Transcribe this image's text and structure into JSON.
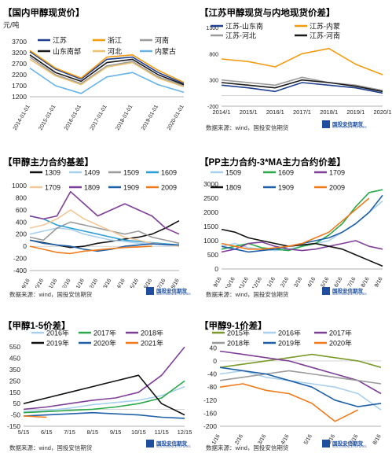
{
  "chart_data": [
    {
      "type": "line",
      "title": "【国内甲醇现货价】",
      "ylabel": "元/吨",
      "ylim": [
        1200,
        4200
      ],
      "yticks": [
        1200,
        1700,
        2200,
        2700,
        3200,
        3700
      ],
      "x": [
        "2014-01-01",
        "2015-01-01",
        "2016-01-01",
        "2017-01-01",
        "2018-01-01",
        "2019-01-01",
        "2020-01-01"
      ],
      "series": [
        {
          "name": "江苏",
          "color": "#1f3f8f",
          "values": [
            3250,
            2450,
            2000,
            2900,
            3000,
            2300,
            1800
          ]
        },
        {
          "name": "浙江",
          "color": "#f39c12",
          "values": [
            3300,
            2500,
            2050,
            3000,
            3100,
            2400,
            1850
          ]
        },
        {
          "name": "河南",
          "color": "#9a9a9a",
          "values": [
            3000,
            2200,
            1800,
            2600,
            2800,
            2100,
            1700
          ]
        },
        {
          "name": "山东南部",
          "color": "#1a1a1a",
          "values": [
            3100,
            2300,
            1900,
            2750,
            2900,
            2200,
            1750
          ]
        },
        {
          "name": "河北",
          "color": "#e8c070",
          "values": [
            2900,
            2150,
            1750,
            2550,
            2750,
            2050,
            1650
          ]
        },
        {
          "name": "内蒙古",
          "color": "#66b3e8",
          "values": [
            2500,
            1700,
            1350,
            2100,
            2300,
            1750,
            1400
          ]
        }
      ],
      "source": "数据来源：wind，国投安信期货"
    },
    {
      "type": "line",
      "title": "【江苏甲醇现货与内地现货价差】",
      "ylim": [
        -200,
        1300
      ],
      "yticks": [
        -200,
        300,
        800,
        1300
      ],
      "x": [
        "2014/1",
        "2015/1",
        "2016/1",
        "2017/1",
        "2018/1",
        "2019/1",
        "2020/1"
      ],
      "series": [
        {
          "name": "江苏-山东南",
          "color": "#1f3f8f",
          "values": [
            200,
            150,
            80,
            250,
            200,
            150,
            50
          ]
        },
        {
          "name": "江苏-内蒙",
          "color": "#f39c12",
          "values": [
            700,
            650,
            550,
            800,
            900,
            600,
            400
          ]
        },
        {
          "name": "江苏-河北",
          "color": "#9a9a9a",
          "values": [
            300,
            250,
            200,
            350,
            250,
            200,
            100
          ]
        },
        {
          "name": "江苏-河南",
          "color": "#1a1a1a",
          "values": [
            250,
            200,
            150,
            300,
            250,
            180,
            80
          ]
        }
      ],
      "source": "数据来源：wind，国投安信期货"
    },
    {
      "type": "line",
      "title": "【甲醇主力合约基差】",
      "ylim": [
        -400,
        1000
      ],
      "yticks": [
        -400,
        -200,
        0,
        200,
        400,
        600,
        800,
        1000
      ],
      "x": [
        "9/16",
        "10/16",
        "11/16",
        "12/16",
        "1/16",
        "2/16",
        "3/16",
        "4/16",
        "5/16",
        "6/16",
        "7/16",
        "8/16"
      ],
      "series": [
        {
          "name": "1309",
          "color": "#111111",
          "values": [
            100,
            60,
            20,
            -20,
            0,
            50,
            80,
            120,
            150,
            200,
            300,
            420
          ]
        },
        {
          "name": "1409",
          "color": "#a8d0ee",
          "values": [
            200,
            250,
            300,
            280,
            200,
            150,
            100,
            80,
            50,
            40,
            20,
            0
          ]
        },
        {
          "name": "1509",
          "color": "#9a9a9a",
          "values": [
            150,
            100,
            300,
            400,
            350,
            300,
            250,
            200,
            250,
            150,
            100,
            50
          ]
        },
        {
          "name": "1609",
          "color": "#2a9fd6",
          "values": [
            500,
            450,
            350,
            300,
            250,
            200,
            150,
            100,
            80,
            60,
            40,
            20
          ]
        },
        {
          "name": "1709",
          "color": "#f0c89a",
          "values": [
            300,
            350,
            450,
            600,
            450,
            350,
            250,
            150,
            100,
            50,
            30,
            0
          ]
        },
        {
          "name": "1809",
          "color": "#7f3f98",
          "values": [
            500,
            450,
            500,
            900,
            700,
            500,
            600,
            700,
            600,
            500,
            300,
            200
          ]
        },
        {
          "name": "1909",
          "color": "#1f5fa8",
          "values": [
            100,
            50,
            20,
            0,
            -50,
            -80,
            -50,
            0,
            20,
            40,
            30,
            20
          ]
        },
        {
          "name": "2009",
          "color": "#f07a1a",
          "values": [
            0,
            -50,
            -100,
            -120,
            -80,
            -60,
            -40,
            -20,
            -10,
            0,
            null,
            null
          ]
        }
      ],
      "source": "数据来源：wind，国投安信期货"
    },
    {
      "type": "line",
      "title": "【PP主力合约-3*MA主力合约价差】",
      "ylim": [
        0,
        3000
      ],
      "yticks": [
        0,
        500,
        1000,
        1500,
        2000,
        2500,
        3000
      ],
      "x": [
        "9/16",
        "10/16",
        "11/16",
        "12/16",
        "1/16",
        "2/16",
        "3/16",
        "4/16",
        "5/16",
        "6/16",
        "7/16",
        "8/16",
        "9/16"
      ],
      "series": [
        {
          "name": "1509",
          "color": "#a8d0ee",
          "values": [
            800,
            900,
            750,
            700,
            650,
            700,
            800,
            900,
            1000,
            1300,
            1600,
            2000,
            2400
          ]
        },
        {
          "name": "1609",
          "color": "#2aa84a",
          "values": [
            700,
            800,
            900,
            750,
            700,
            650,
            800,
            900,
            1200,
            1600,
            2200,
            2700,
            2800
          ]
        },
        {
          "name": "1709",
          "color": "#7f3f98",
          "values": [
            600,
            700,
            900,
            950,
            800,
            700,
            650,
            700,
            800,
            900,
            1000,
            800,
            700
          ]
        },
        {
          "name": "1809",
          "color": "#111111",
          "values": [
            1400,
            1300,
            1100,
            1000,
            900,
            800,
            850,
            900,
            800,
            700,
            500,
            300,
            100
          ]
        },
        {
          "name": "1909",
          "color": "#1f5fa8",
          "values": [
            800,
            700,
            600,
            650,
            700,
            800,
            900,
            1000,
            1100,
            1300,
            1600,
            2000,
            2600
          ]
        },
        {
          "name": "2009",
          "color": "#f07a1a",
          "values": [
            900,
            800,
            700,
            700,
            750,
            800,
            900,
            1100,
            1300,
            1700,
            2100,
            2500,
            null
          ]
        }
      ],
      "source": "数据来源：wind，国投安信期货"
    },
    {
      "type": "line",
      "title": "【甲醇1-5价差】",
      "ylim": [
        -150,
        600
      ],
      "yticks": [
        -150,
        -100,
        -50,
        0,
        50,
        100,
        150,
        200,
        250,
        300,
        350,
        400,
        450,
        500,
        550,
        600
      ],
      "x": [
        "5/15",
        "6/15",
        "7/15",
        "8/15",
        "9/15",
        "10/15",
        "11/15",
        "12/15"
      ],
      "series": [
        {
          "name": "2016年",
          "color": "#a8d0ee",
          "values": [
            -20,
            -10,
            10,
            40,
            60,
            80,
            120,
            200
          ]
        },
        {
          "name": "2017年",
          "color": "#2aa84a",
          "values": [
            -30,
            -20,
            -10,
            0,
            20,
            50,
            100,
            250
          ]
        },
        {
          "name": "2018年",
          "color": "#7f3f98",
          "values": [
            0,
            20,
            50,
            80,
            100,
            150,
            300,
            550
          ]
        },
        {
          "name": "2019年",
          "color": "#111111",
          "values": [
            50,
            100,
            150,
            200,
            250,
            300,
            50,
            -50
          ]
        },
        {
          "name": "2020年",
          "color": "#1f5fa8",
          "values": [
            -60,
            -50,
            -40,
            -30,
            -40,
            -50,
            -70,
            -80
          ]
        },
        {
          "name": "2021年",
          "color": "#f07a1a",
          "values": [
            -60,
            -70,
            null,
            null,
            null,
            null,
            null,
            null
          ]
        }
      ],
      "source": "数据来源：wind，国投安信期货"
    },
    {
      "type": "line",
      "title": "【甲醇9-1价差】",
      "ylim": [
        -200,
        60
      ],
      "yticks": [
        -200,
        -180,
        -160,
        -140,
        -120,
        -100,
        -80,
        -60,
        -40,
        -20,
        0,
        20,
        40,
        60
      ],
      "x": [
        "1/16",
        "2/16",
        "3/16",
        "4/16",
        "5/16",
        "6/16",
        "7/16",
        "8/16"
      ],
      "series": [
        {
          "name": "2015年",
          "color": "#7a9a2a",
          "values": [
            -20,
            -10,
            0,
            10,
            20,
            10,
            0,
            -20
          ]
        },
        {
          "name": "2016年",
          "color": "#a8d0ee",
          "values": [
            -40,
            -30,
            -50,
            -60,
            -70,
            -80,
            -100,
            -150
          ]
        },
        {
          "name": "2017年",
          "color": "#7f3f98",
          "values": [
            30,
            20,
            10,
            0,
            -20,
            -40,
            -60,
            -100
          ]
        },
        {
          "name": "2018年",
          "color": "#9a9a9a",
          "values": [
            -60,
            -50,
            -40,
            -30,
            -40,
            -50,
            -60,
            -70
          ]
        },
        {
          "name": "2019年",
          "color": "#1f5fa8",
          "values": [
            -20,
            -30,
            -40,
            -60,
            -80,
            -120,
            -140,
            -130
          ]
        },
        {
          "name": "2020年",
          "color": "#f07a1a",
          "values": [
            -80,
            -70,
            -90,
            -100,
            -130,
            -185,
            -150,
            null
          ]
        }
      ],
      "source": "数据来源：wind，国投安信期货"
    }
  ],
  "logo": {
    "line1": "国投安信期货",
    "line2": "SDIC ESSENCE FUTURES"
  }
}
